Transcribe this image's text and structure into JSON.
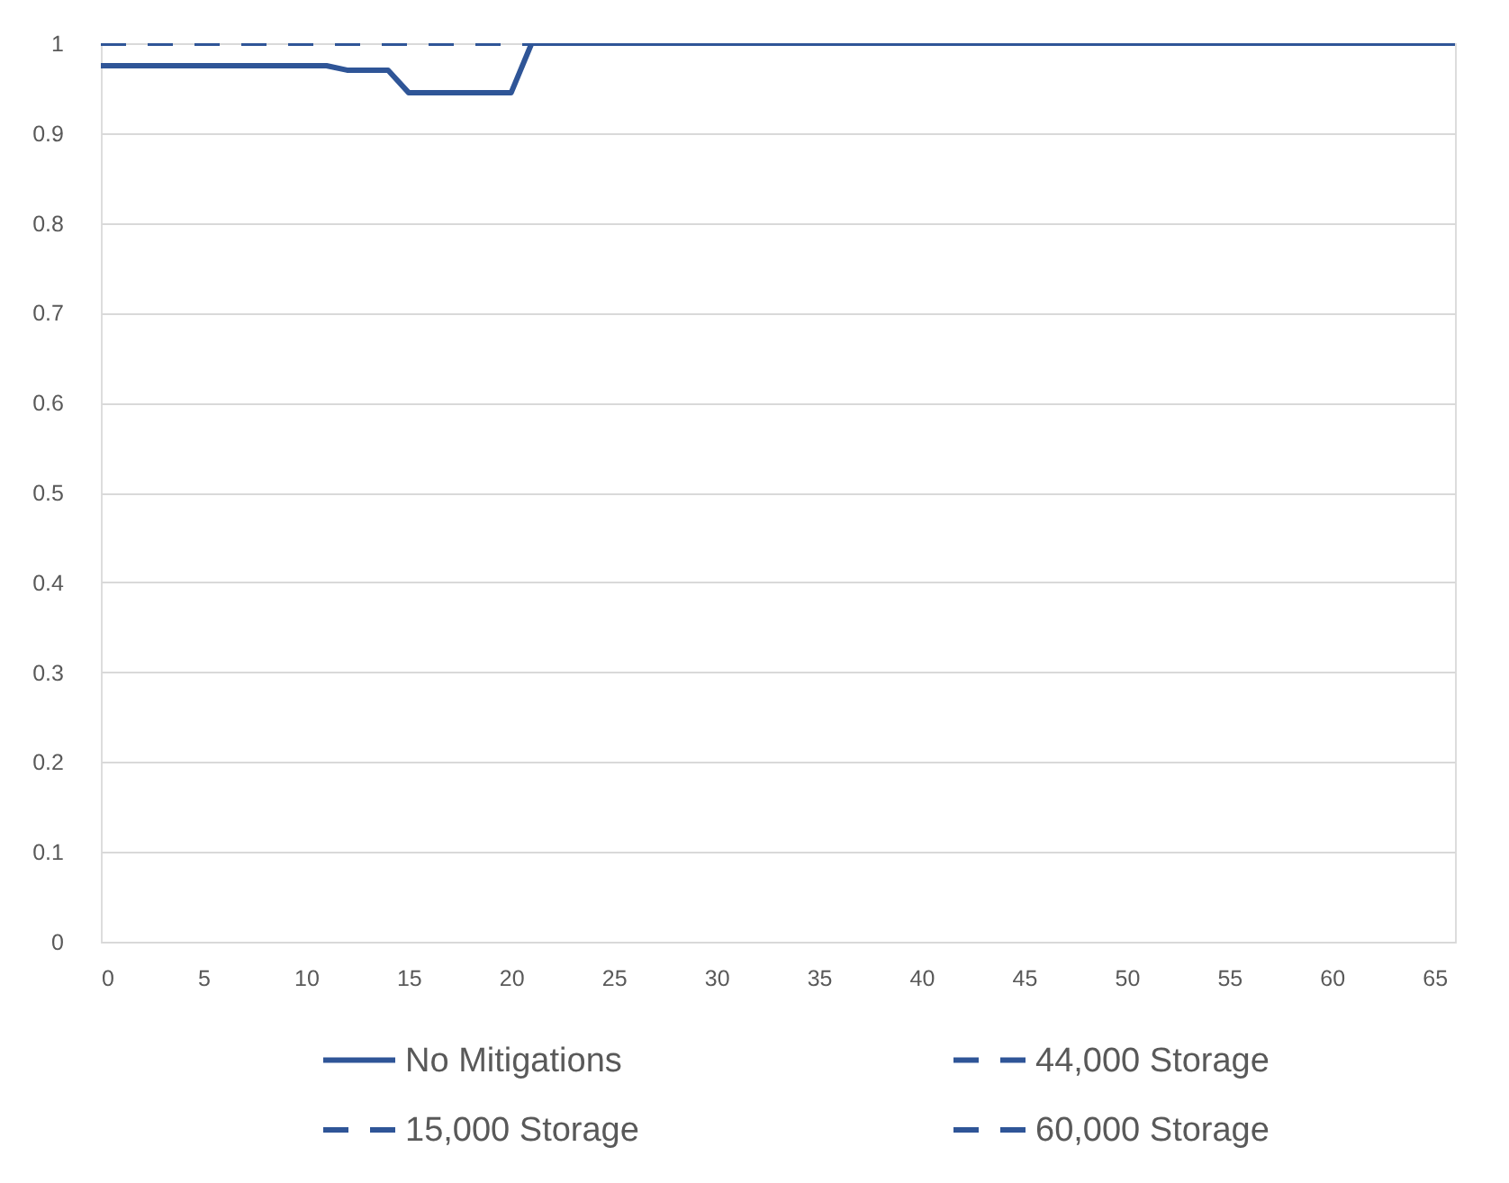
{
  "chart_data": {
    "type": "line",
    "series": [
      {
        "name": "No Mitigations",
        "color": "#2f5597",
        "line_style": "solid",
        "x": [
          0,
          11,
          12,
          14,
          15,
          20,
          21,
          66
        ],
        "values": [
          0.975,
          0.975,
          0.97,
          0.97,
          0.945,
          0.945,
          1,
          1
        ]
      },
      {
        "name": "15,000 Storage",
        "color": "#2f5597",
        "line_style": "dashed",
        "values": [
          null
        ]
      },
      {
        "name": "44,000 Storage",
        "color": "#2f5597",
        "line_style": "dashed",
        "values": [
          null
        ]
      },
      {
        "name": "60,000 Storage",
        "color": "#2f5597",
        "line_style": "dashed",
        "x": [
          0,
          66
        ],
        "values": [
          1,
          1
        ]
      }
    ],
    "xlim": [
      0,
      66
    ],
    "xticks": [
      0,
      5,
      10,
      15,
      20,
      25,
      30,
      35,
      40,
      45,
      50,
      55,
      60,
      65
    ],
    "ylim": [
      0,
      1
    ],
    "yticks": [
      0,
      0.1,
      0.2,
      0.3,
      0.4,
      0.5,
      0.6,
      0.7,
      0.8,
      0.9,
      1
    ],
    "grid": "y",
    "legend": "bottom",
    "marker": "none"
  }
}
